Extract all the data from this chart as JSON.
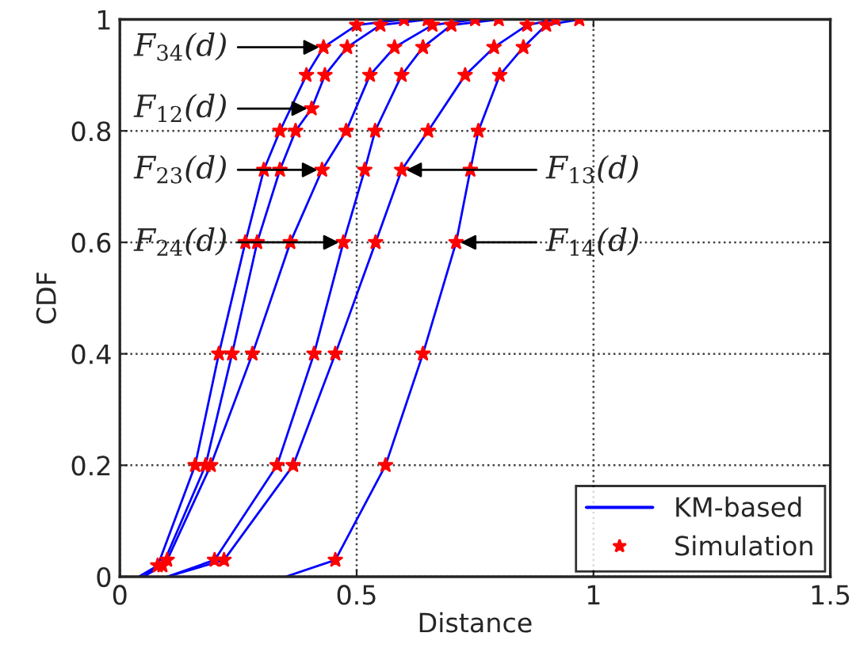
{
  "chart_data": {
    "type": "line",
    "xlabel": "Distance",
    "ylabel": "CDF",
    "xlim": [
      0,
      1.5
    ],
    "ylim": [
      0,
      1
    ],
    "xticks": [
      0,
      0.5,
      1,
      1.5
    ],
    "yticks": [
      0,
      0.2,
      0.4,
      0.6,
      0.8,
      1
    ],
    "grid": true,
    "legend": "bottom right",
    "series": [
      {
        "name": "KM-based",
        "color": "#0000ff",
        "line_style": "solid",
        "marker": "none",
        "x": [
          0.04,
          0.08,
          0.159,
          0.209,
          0.265,
          0.304,
          0.338,
          0.394,
          0.43,
          0.5,
          0.6
        ],
        "values": [
          0,
          0.02,
          0.2,
          0.4,
          0.6,
          0.73,
          0.8,
          0.9,
          0.95,
          0.99,
          1
        ]
      },
      {
        "type": "line",
        "color": "#0000ff",
        "line_style": "solid",
        "marker": "none",
        "x": [
          0.05,
          0.09,
          0.181,
          0.237,
          0.29,
          0.338,
          0.371,
          0.405,
          0.433,
          0.48,
          0.55,
          0.65
        ],
        "values": [
          0,
          0.02,
          0.2,
          0.4,
          0.6,
          0.73,
          0.8,
          0.84,
          0.9,
          0.95,
          0.99,
          1
        ]
      },
      {
        "type": "line",
        "color": "#0000ff",
        "line_style": "solid",
        "marker": "none",
        "x": [
          0.05,
          0.1,
          0.192,
          0.28,
          0.36,
          0.427,
          0.478,
          0.528,
          0.58,
          0.66,
          0.75
        ],
        "values": [
          0,
          0.03,
          0.2,
          0.4,
          0.6,
          0.73,
          0.8,
          0.9,
          0.95,
          0.99,
          1
        ]
      },
      {
        "type": "line",
        "color": "#0000ff",
        "line_style": "solid",
        "marker": "none",
        "x": [
          0.1,
          0.2,
          0.332,
          0.41,
          0.472,
          0.517,
          0.539,
          0.595,
          0.64,
          0.7,
          0.8
        ],
        "values": [
          0,
          0.03,
          0.2,
          0.4,
          0.6,
          0.73,
          0.8,
          0.9,
          0.95,
          0.99,
          1
        ]
      },
      {
        "type": "line",
        "color": "#0000ff",
        "line_style": "solid",
        "marker": "none",
        "x": [
          0.1,
          0.22,
          0.366,
          0.455,
          0.54,
          0.595,
          0.651,
          0.729,
          0.79,
          0.86,
          0.92
        ],
        "values": [
          0,
          0.03,
          0.2,
          0.4,
          0.6,
          0.73,
          0.8,
          0.9,
          0.95,
          0.99,
          1
        ]
      },
      {
        "type": "line",
        "color": "#0000ff",
        "line_style": "solid",
        "marker": "none",
        "x": [
          0.35,
          0.455,
          0.561,
          0.64,
          0.71,
          0.74,
          0.757,
          0.802,
          0.852,
          0.9,
          0.97
        ],
        "values": [
          0,
          0.03,
          0.2,
          0.4,
          0.6,
          0.73,
          0.8,
          0.9,
          0.95,
          0.99,
          1
        ]
      },
      {
        "name": "Simulation",
        "type": "scatter",
        "color": "#ff0000",
        "marker": "star",
        "x": [
          0.08,
          0.159,
          0.209,
          0.265,
          0.304,
          0.338,
          0.394,
          0.43,
          0.5,
          0.6
        ],
        "values": [
          0.02,
          0.2,
          0.4,
          0.6,
          0.73,
          0.8,
          0.9,
          0.95,
          0.99,
          1
        ]
      },
      {
        "type": "scatter",
        "color": "#ff0000",
        "marker": "star",
        "x": [
          0.09,
          0.181,
          0.237,
          0.29,
          0.338,
          0.371,
          0.405,
          0.433,
          0.48,
          0.55,
          0.65
        ],
        "values": [
          0.02,
          0.2,
          0.4,
          0.6,
          0.73,
          0.8,
          0.84,
          0.9,
          0.95,
          0.99,
          1
        ]
      },
      {
        "type": "scatter",
        "color": "#ff0000",
        "marker": "star",
        "x": [
          0.1,
          0.192,
          0.28,
          0.36,
          0.427,
          0.478,
          0.528,
          0.58,
          0.66,
          0.75
        ],
        "values": [
          0.03,
          0.2,
          0.4,
          0.6,
          0.73,
          0.8,
          0.9,
          0.95,
          0.99,
          1
        ]
      },
      {
        "type": "scatter",
        "color": "#ff0000",
        "marker": "star",
        "x": [
          0.2,
          0.332,
          0.41,
          0.472,
          0.517,
          0.539,
          0.595,
          0.64,
          0.7,
          0.8
        ],
        "values": [
          0.03,
          0.2,
          0.4,
          0.6,
          0.73,
          0.8,
          0.9,
          0.95,
          0.99,
          1
        ]
      },
      {
        "type": "scatter",
        "color": "#ff0000",
        "marker": "star",
        "x": [
          0.22,
          0.366,
          0.455,
          0.54,
          0.595,
          0.651,
          0.729,
          0.79,
          0.86,
          0.92
        ],
        "values": [
          0.03,
          0.2,
          0.4,
          0.6,
          0.73,
          0.8,
          0.9,
          0.95,
          0.99,
          1
        ]
      },
      {
        "type": "scatter",
        "color": "#ff0000",
        "marker": "star",
        "x": [
          0.455,
          0.561,
          0.64,
          0.71,
          0.74,
          0.757,
          0.802,
          0.852,
          0.9,
          0.97
        ],
        "values": [
          0.03,
          0.2,
          0.4,
          0.6,
          0.73,
          0.8,
          0.9,
          0.95,
          0.99,
          1
        ]
      }
    ],
    "annotations": [
      {
        "text": "F$_{34}$(d)",
        "x": 0.43,
        "y": 0.95
      },
      {
        "text": "F$_{12}$(d)",
        "x": 0.405,
        "y": 0.84
      },
      {
        "text": "F$_{23}$(d)",
        "x": 0.427,
        "y": 0.73
      },
      {
        "text": "F$_{24}$(d)",
        "x": 0.472,
        "y": 0.6
      },
      {
        "text": "F$_{13}$(d)",
        "x": 0.595,
        "y": 0.73
      },
      {
        "text": "F$_{14}$(d)",
        "x": 0.71,
        "y": 0.6
      }
    ]
  }
}
